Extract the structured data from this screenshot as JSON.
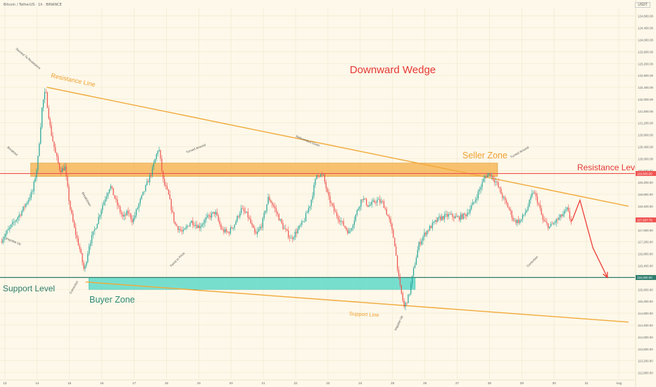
{
  "header": {
    "symbol": "Bitcoin / TetherUS · 1h · BINANCE",
    "currency": "USDT"
  },
  "chart_data": {
    "type": "candlestick",
    "title": "Downward Wedge",
    "x_ticks": [
      "13",
      "14",
      "15",
      "16",
      "17",
      "18",
      "19",
      "20",
      "21",
      "22",
      "23",
      "24",
      "25",
      "26",
      "27",
      "28",
      "29",
      "30",
      "31",
      "Aug"
    ],
    "y_ticks": [
      112800,
      113200,
      113600,
      114000,
      114400,
      114800,
      115200,
      115600,
      116000,
      116400,
      116800,
      117200,
      117600,
      118000,
      118400,
      118800,
      119200,
      119600,
      120000,
      120400,
      120800,
      121200,
      121600,
      122000,
      122400,
      122800,
      123200,
      123600,
      124000,
      124400,
      124800
    ],
    "y_tick_labels": [
      "112,800.00",
      "113,200.00",
      "113,600.00",
      "114,000.00",
      "114,400.00",
      "114,800.00",
      "115,200.00",
      "115,600.00",
      "116,000.00",
      "116,400.00",
      "116,800.00",
      "117,200.00",
      "117,600.00",
      "118,000.00",
      "118,400.00",
      "118,800.00",
      "119,200.00",
      "119,600.00",
      "120,000.00",
      "120,400.00",
      "120,800.00",
      "121,200.00",
      "121,600.00",
      "122,000.00",
      "122,400.00",
      "122,800.00",
      "123,200.00",
      "123,600.00",
      "124,000.00",
      "124,400.00",
      "124,800.00"
    ],
    "ylim": [
      112600,
      125100
    ],
    "price_path": [
      [
        12.9,
        117200
      ],
      [
        13.15,
        117600
      ],
      [
        13.35,
        117900
      ],
      [
        13.55,
        118200
      ],
      [
        13.75,
        118600
      ],
      [
        13.9,
        118900
      ],
      [
        14.05,
        119800
      ],
      [
        14.2,
        121800
      ],
      [
        14.3,
        122300
      ],
      [
        14.45,
        121000
      ],
      [
        14.6,
        120200
      ],
      [
        14.75,
        119600
      ],
      [
        14.9,
        119700
      ],
      [
        15.05,
        118400
      ],
      [
        15.2,
        117600
      ],
      [
        15.35,
        117000
      ],
      [
        15.5,
        116200
      ],
      [
        15.65,
        117100
      ],
      [
        15.85,
        117700
      ],
      [
        16.05,
        118400
      ],
      [
        16.3,
        119100
      ],
      [
        16.5,
        118500
      ],
      [
        16.7,
        118000
      ],
      [
        16.85,
        118200
      ],
      [
        17.0,
        117900
      ],
      [
        17.2,
        118500
      ],
      [
        17.35,
        118900
      ],
      [
        17.6,
        119600
      ],
      [
        17.8,
        120400
      ],
      [
        17.95,
        119200
      ],
      [
        18.1,
        118800
      ],
      [
        18.3,
        117800
      ],
      [
        18.55,
        117500
      ],
      [
        18.8,
        117900
      ],
      [
        19.05,
        117700
      ],
      [
        19.3,
        118000
      ],
      [
        19.55,
        118200
      ],
      [
        19.75,
        117600
      ],
      [
        19.95,
        117500
      ],
      [
        20.15,
        117800
      ],
      [
        20.35,
        118300
      ],
      [
        20.55,
        118100
      ],
      [
        20.8,
        117400
      ],
      [
        21.0,
        117800
      ],
      [
        21.2,
        118700
      ],
      [
        21.4,
        118300
      ],
      [
        21.65,
        117700
      ],
      [
        21.9,
        117300
      ],
      [
        22.1,
        117600
      ],
      [
        22.3,
        117900
      ],
      [
        22.5,
        118500
      ],
      [
        22.7,
        119500
      ],
      [
        22.9,
        119400
      ],
      [
        23.05,
        118700
      ],
      [
        23.25,
        118200
      ],
      [
        23.5,
        117800
      ],
      [
        23.7,
        117500
      ],
      [
        23.9,
        118100
      ],
      [
        24.1,
        118700
      ],
      [
        24.3,
        118400
      ],
      [
        24.55,
        118600
      ],
      [
        24.75,
        118500
      ],
      [
        24.95,
        117900
      ],
      [
        25.1,
        117200
      ],
      [
        25.25,
        115800
      ],
      [
        25.4,
        115000
      ],
      [
        25.55,
        115400
      ],
      [
        25.7,
        116300
      ],
      [
        25.85,
        117100
      ],
      [
        26.05,
        117500
      ],
      [
        26.3,
        117800
      ],
      [
        26.5,
        118000
      ],
      [
        26.8,
        118100
      ],
      [
        27.05,
        118000
      ],
      [
        27.3,
        118100
      ],
      [
        27.55,
        118500
      ],
      [
        27.75,
        119000
      ],
      [
        27.9,
        119400
      ],
      [
        28.05,
        119500
      ],
      [
        28.25,
        119200
      ],
      [
        28.45,
        118700
      ],
      [
        28.65,
        118300
      ],
      [
        28.8,
        117900
      ],
      [
        29.0,
        117900
      ],
      [
        29.2,
        118300
      ],
      [
        29.4,
        118900
      ],
      [
        29.55,
        118500
      ],
      [
        29.7,
        117900
      ],
      [
        29.9,
        117700
      ],
      [
        30.1,
        117900
      ],
      [
        30.3,
        118100
      ],
      [
        30.45,
        118300
      ],
      [
        30.55,
        117900
      ]
    ],
    "projection": [
      [
        30.55,
        117900
      ],
      [
        30.8,
        118600
      ],
      [
        31.2,
        117000
      ],
      [
        31.65,
        116000
      ]
    ],
    "zones": [
      {
        "label": "Seller Zone",
        "x0": 13.8,
        "x1": 28.25,
        "y0": 119400,
        "y1": 119850
      },
      {
        "label": "Buyer Zone",
        "x0": 15.6,
        "x1": 25.7,
        "y0": 115600,
        "y1": 116000
      }
    ],
    "lines": [
      {
        "label": "Resistance Line",
        "from": [
          14.3,
          122400
        ],
        "to": [
          32.3,
          118400
        ]
      },
      {
        "label": "Support Line",
        "from": [
          15.5,
          115850
        ],
        "to": [
          32.3,
          114500
        ]
      },
      {
        "label": "Resistance Level",
        "y": 119500
      },
      {
        "label": "Support Level",
        "y": 116000
      }
    ],
    "annotations": [
      "Impulse Up",
      "Breakout",
      "Second To Resistance",
      "Breakdown",
      "Correction",
      "Turned Around",
      "Trend In Price",
      "Rebounded Down",
      "Impulse Up",
      "Turned Around",
      "Correction"
    ],
    "price_tags": [
      "119,500.00",
      "117,937.75",
      "116,000.00"
    ],
    "price_tag_value": 117937.75
  }
}
